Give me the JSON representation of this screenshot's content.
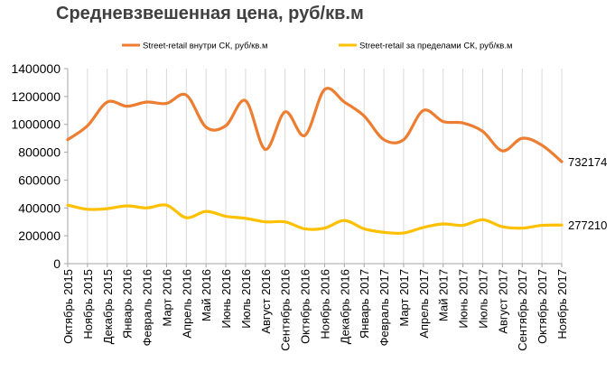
{
  "title": "Средневзвешенная цена, руб/кв.м",
  "chart_data": {
    "type": "line",
    "title": "Средневзвешенная цена, руб/кв.м",
    "xlabel": "",
    "ylabel": "",
    "ylim": [
      0,
      1400000
    ],
    "yticks": [
      "0",
      "200000",
      "400000",
      "600000",
      "800000",
      "1000000",
      "1200000",
      "1400000"
    ],
    "grid": "vertical",
    "legend_position": "top",
    "categories": [
      "Октябрь 2015",
      "Ноябрь 2015",
      "Декабрь 2015",
      "Январь 2016",
      "Февраль 2016",
      "Март 2016",
      "Апрель 2016",
      "Май 2016",
      "Июнь 2016",
      "Июль 2016",
      "Август 2016",
      "Сентябрь 2016",
      "Октябрь 2016",
      "Ноябрь 2016",
      "Декабрь 2016",
      "Январь 2017",
      "Февраль 2017",
      "Март 2017",
      "Апрель 2017",
      "Май 2017",
      "Июнь 2017",
      "Июль 2017",
      "Август 2017",
      "Сентябрь 2017",
      "Октябрь 2017",
      "Ноябрь 2017"
    ],
    "series": [
      {
        "name": "Street-retail внутри  СК, руб/кв.м",
        "color": "#ED7D31",
        "values": [
          890000,
          990000,
          1160000,
          1130000,
          1160000,
          1150000,
          1210000,
          980000,
          990000,
          1170000,
          820000,
          1090000,
          920000,
          1250000,
          1160000,
          1060000,
          890000,
          890000,
          1100000,
          1020000,
          1010000,
          950000,
          810000,
          900000,
          850000,
          732174
        ],
        "end_label": "732174"
      },
      {
        "name": "Street-retail за пределами  СК, руб/кв.м",
        "color": "#FFC000",
        "values": [
          420000,
          390000,
          395000,
          415000,
          400000,
          420000,
          330000,
          375000,
          340000,
          325000,
          300000,
          300000,
          250000,
          255000,
          310000,
          250000,
          225000,
          220000,
          260000,
          285000,
          275000,
          315000,
          265000,
          255000,
          275000,
          277210
        ],
        "end_label": "277210"
      }
    ]
  }
}
